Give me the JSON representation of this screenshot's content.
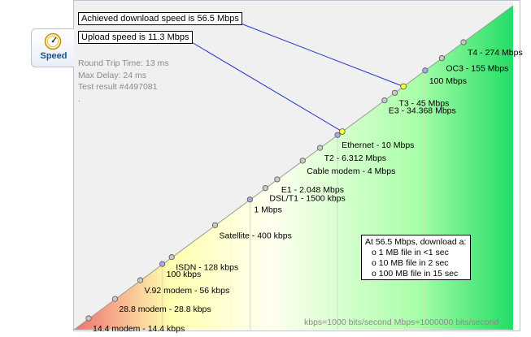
{
  "tab": {
    "label": "Speed",
    "icon": "speedometer-icon"
  },
  "info": {
    "round_trip": "Round Trip Time: 13 ms",
    "max_delay": "Max Delay: 24 ms",
    "test_result": "Test result #4497081",
    "dot": "."
  },
  "callouts": {
    "download": "Achieved download speed is 56.5 Mbps",
    "upload": "Upload speed is 11.3 Mbps"
  },
  "download_box": {
    "title": "At 56.5 Mbps, download a:",
    "rows": [
      "o 1 MB file in <1 sec",
      "o 10 MB file in 2 sec",
      "o 100 MB file in 15 sec"
    ]
  },
  "footer": "kbps=1000 bits/second  Mbps=1000000 bits/second",
  "colors": {
    "upper_area": "#f0f0f0",
    "gradient_low": "#f07070",
    "gradient_mid": "#fffff0",
    "gradient_high": "#22dd66",
    "callout_line": "#2233cc",
    "marker_grey": "#c8c8c8",
    "marker_purple": "#a8a8ee",
    "marker_yellow": "#ffff33"
  },
  "chart_data": {
    "type": "scatter",
    "points": [
      {
        "label": "14.4 modem - 14.4 kbps",
        "value_kbps": 14.4,
        "marker": "grey"
      },
      {
        "label": "28.8 modem - 28.8 kbps",
        "value_kbps": 28.8,
        "marker": "grey"
      },
      {
        "label": "V.92 modem - 56 kbps",
        "value_kbps": 56,
        "marker": "grey"
      },
      {
        "label": "100 kbps",
        "value_kbps": 100,
        "marker": "purple"
      },
      {
        "label": "ISDN - 128 kbps",
        "value_kbps": 128,
        "marker": "grey"
      },
      {
        "label": "Satellite - 400 kbps",
        "value_kbps": 400,
        "marker": "grey"
      },
      {
        "label": "1 Mbps",
        "value_kbps": 1000,
        "marker": "purple"
      },
      {
        "label": "DSL/T1 - 1500 kbps",
        "value_kbps": 1500,
        "marker": "grey"
      },
      {
        "label": "E1 - 2.048 Mbps",
        "value_kbps": 2048,
        "marker": "grey"
      },
      {
        "label": "Cable modem - 4 Mbps",
        "value_kbps": 4000,
        "marker": "grey"
      },
      {
        "label": "T2 - 6.312 Mbps",
        "value_kbps": 6312,
        "marker": "grey"
      },
      {
        "label": "Ethernet - 10 Mbps",
        "value_kbps": 10000,
        "marker": "purple"
      },
      {
        "label": "E3 - 34.368 Mbps",
        "value_kbps": 34368,
        "marker": "grey"
      },
      {
        "label": "T3 - 45 Mbps",
        "value_kbps": 45000,
        "marker": "grey"
      },
      {
        "label": "100 Mbps",
        "value_kbps": 100000,
        "marker": "purple"
      },
      {
        "label": "OC3 - 155 Mbps",
        "value_kbps": 155000,
        "marker": "grey"
      },
      {
        "label": "T4 - 274 Mbps",
        "value_kbps": 274000,
        "marker": "grey"
      }
    ],
    "measured": [
      {
        "name": "download",
        "value_kbps": 56500
      },
      {
        "name": "upload",
        "value_kbps": 11300
      }
    ],
    "scale": "log"
  }
}
